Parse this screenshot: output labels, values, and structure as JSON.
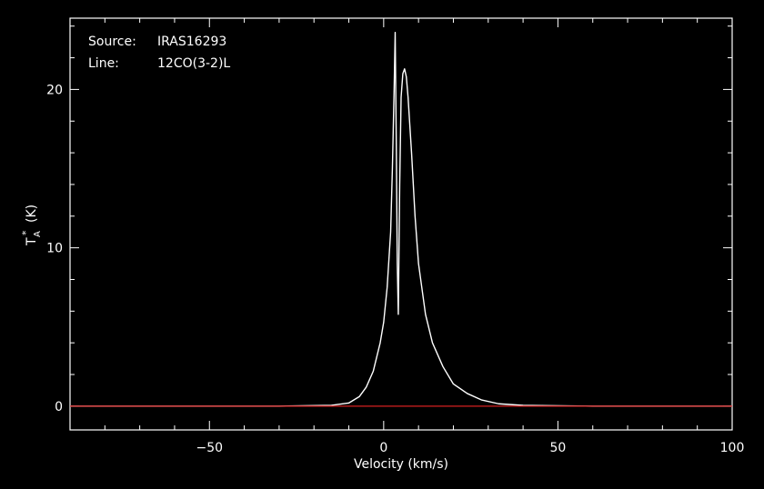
{
  "chart_data": {
    "type": "line",
    "annotations": {
      "source_label": "Source:",
      "source_value": "IRAS16293",
      "line_label": "Line:",
      "line_value": "12CO(3-2)L"
    },
    "xlabel": "Velocity (km/s)",
    "ylabel_main": "T",
    "ylabel_sub": "A",
    "ylabel_sup": "*",
    "ylabel_unit": "(K)",
    "xlim": [
      -90,
      100
    ],
    "ylim": [
      -1.5,
      24.5
    ],
    "x_ticks": [
      -50,
      0,
      50,
      100
    ],
    "x_tick_labels": [
      "−50",
      "0",
      "50",
      "100"
    ],
    "y_ticks": [
      0,
      10,
      20
    ],
    "y_tick_labels": [
      "0",
      "10",
      "20"
    ],
    "series": [
      {
        "color": "#ffffff",
        "x": [
          -90,
          -60,
          -30,
          -15,
          -10,
          -7,
          -5,
          -3,
          -1,
          0,
          1,
          2,
          2.5,
          3,
          3.3,
          3.6,
          3.9,
          4.2,
          4.6,
          5.0,
          5.5,
          6.0,
          6.5,
          7.0,
          8.0,
          9.0,
          10,
          12,
          14,
          17,
          20,
          24,
          28,
          33,
          40,
          60,
          100
        ],
        "y": [
          0,
          0,
          0,
          0.05,
          0.2,
          0.6,
          1.2,
          2.2,
          4.0,
          5.3,
          7.5,
          11.0,
          15.0,
          20.0,
          23.6,
          17.0,
          9.0,
          5.8,
          14.0,
          19.5,
          21.0,
          21.3,
          20.8,
          19.5,
          16.0,
          12.0,
          9.0,
          5.8,
          4.0,
          2.5,
          1.4,
          0.8,
          0.4,
          0.15,
          0.05,
          0,
          0
        ]
      },
      {
        "color": "#d62020",
        "x": [
          -90,
          100
        ],
        "y": [
          0,
          0
        ]
      }
    ],
    "colors": {
      "background": "#000000",
      "axes": "#ffffff",
      "baseline": "#d62020"
    },
    "grid": false,
    "legend": "none"
  }
}
